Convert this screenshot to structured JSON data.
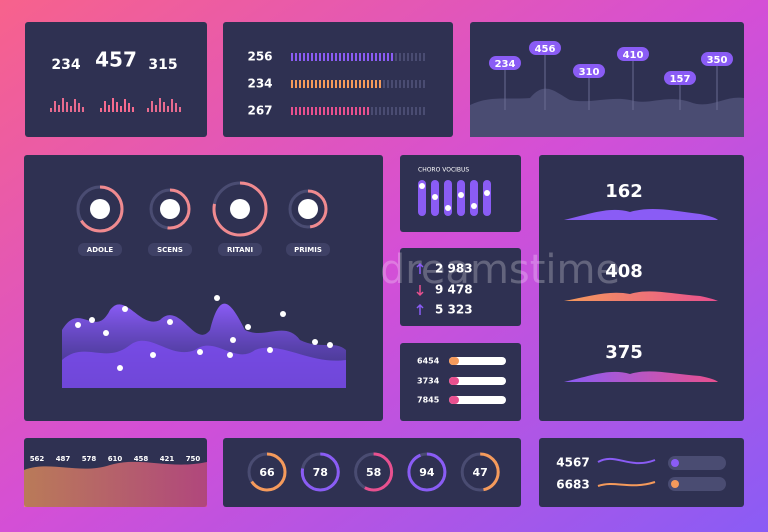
{
  "panel1": {
    "stats": [
      234,
      457,
      315
    ]
  },
  "panel2": {
    "rows": [
      256,
      234,
      267
    ]
  },
  "panel3": {
    "labels": [
      234,
      456,
      310,
      410,
      157,
      350
    ]
  },
  "panel4": {
    "rings": [
      {
        "value": 66,
        "label": "ADOLE"
      },
      {
        "value": 52,
        "label": "SCENS"
      },
      {
        "value": 78,
        "label": "RITANI"
      },
      {
        "value": 48,
        "label": "PRIMIS"
      }
    ]
  },
  "panel5": {
    "title": "CHORO VOCIBUS"
  },
  "panel6": {
    "rows": [
      "2 983",
      "9 478",
      "5 323"
    ]
  },
  "panel7": {
    "rows": [
      6454,
      3734,
      7845
    ]
  },
  "panel8": {
    "stats": [
      162,
      408,
      375
    ]
  },
  "panel9": {
    "labels": [
      562,
      487,
      578,
      610,
      458,
      421,
      750
    ]
  },
  "panel10": {
    "rings": [
      66,
      78,
      58,
      94,
      47
    ]
  },
  "panel11": {
    "stats": [
      4567,
      6683
    ]
  },
  "watermark": "dreamstime"
}
